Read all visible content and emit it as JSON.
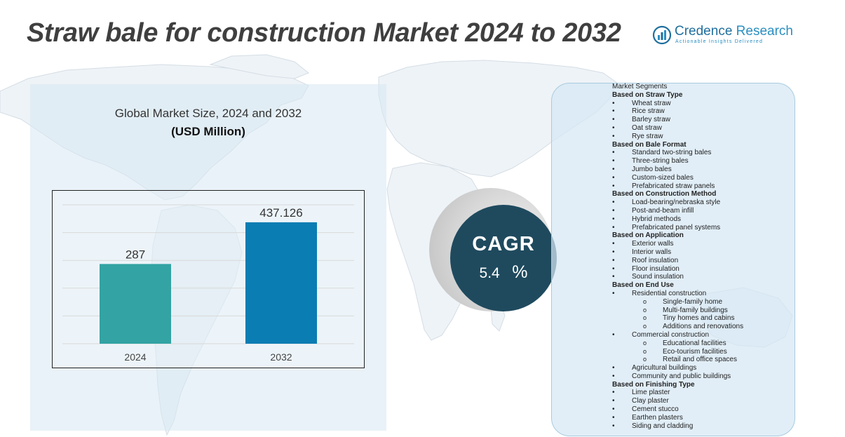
{
  "title": "Straw bale for construction Market 2024 to 2032",
  "logo": {
    "name_main": "Credence",
    "name_accent": " Research",
    "tagline": "Actionable Insights Delivered"
  },
  "chart_heading": "Global Market Size, 2024 and 2032",
  "chart_unit": "(USD Million)",
  "chart_data": {
    "type": "bar",
    "title": "Global Market Size, 2024 and 2032",
    "ylabel": "(USD Million)",
    "xlabel": "",
    "categories": [
      "2024",
      "2032"
    ],
    "values": [
      287,
      437.126
    ],
    "value_labels": [
      "287",
      "437.126"
    ],
    "colors": [
      "#33a3a3",
      "#0a7db3"
    ],
    "ylim": [
      0,
      500
    ],
    "grid": true
  },
  "cagr": {
    "label": "CAGR",
    "value": "5.4",
    "unit": "%"
  },
  "segments": {
    "title": "Market Segments",
    "groups": [
      {
        "heading": "Based on Straw Type",
        "items": [
          {
            "label": "Wheat straw"
          },
          {
            "label": "Rice straw"
          },
          {
            "label": "Barley straw"
          },
          {
            "label": "Oat straw"
          },
          {
            "label": "Rye straw"
          }
        ]
      },
      {
        "heading": "Based on Bale Format",
        "items": [
          {
            "label": "Standard two-string bales"
          },
          {
            "label": "Three-string bales"
          },
          {
            "label": "Jumbo bales"
          },
          {
            "label": "Custom-sized bales"
          },
          {
            "label": "Prefabricated straw panels"
          }
        ]
      },
      {
        "heading": "Based on Construction Method",
        "items": [
          {
            "label": "Load-bearing/nebraska style"
          },
          {
            "label": "Post-and-beam infill"
          },
          {
            "label": "Hybrid methods"
          },
          {
            "label": "Prefabricated panel systems"
          }
        ]
      },
      {
        "heading": "Based on Application",
        "items": [
          {
            "label": "Exterior walls"
          },
          {
            "label": "Interior walls"
          },
          {
            "label": "Roof insulation"
          },
          {
            "label": "Floor insulation"
          },
          {
            "label": "Sound insulation"
          }
        ]
      },
      {
        "heading": "Based on End Use",
        "items": [
          {
            "label": "Residential construction",
            "sub": [
              "Single-family home",
              "Multi-family buildings",
              "Tiny homes and cabins",
              "Additions and renovations"
            ]
          },
          {
            "label": "Commercial construction",
            "sub": [
              "Educational facilities",
              "Eco-tourism facilities",
              "Retail and office spaces"
            ]
          },
          {
            "label": "Agricultural buildings"
          },
          {
            "label": "Community and public buildings"
          }
        ]
      },
      {
        "heading": "Based on Finishing Type",
        "items": [
          {
            "label": "Lime plaster"
          },
          {
            "label": "Clay plaster"
          },
          {
            "label": "Cement stucco"
          },
          {
            "label": "Earthen plasters"
          },
          {
            "label": "Siding and cladding"
          }
        ]
      }
    ]
  }
}
